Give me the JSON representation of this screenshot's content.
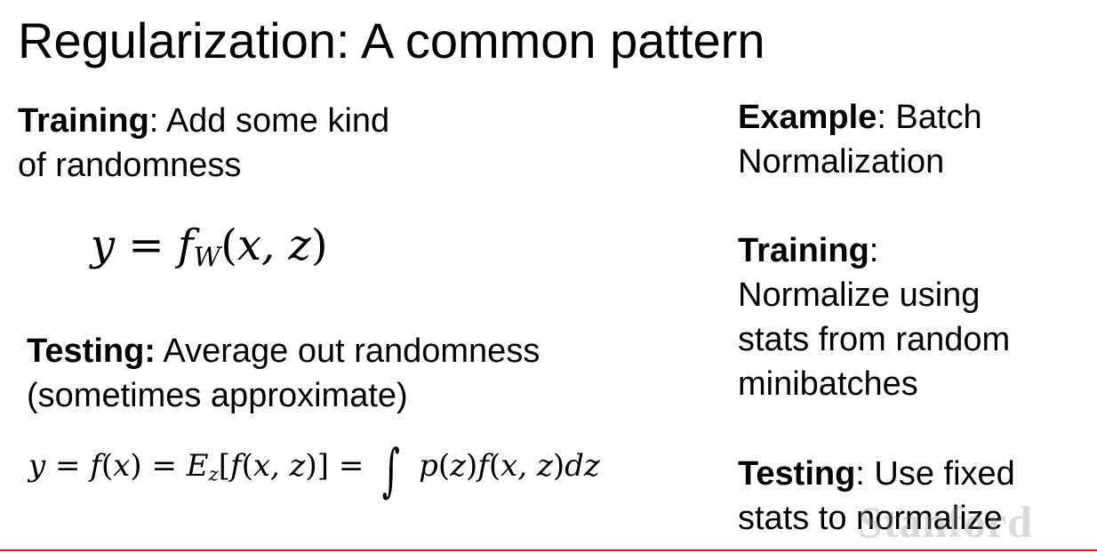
{
  "slide": {
    "title": "Regularization: A common pattern",
    "training": {
      "label": "Training",
      "text_line1": ": Add some kind",
      "text_line2": "of randomness"
    },
    "testing": {
      "label": "Testing:",
      "text_line1": " Average out randomness",
      "text_line2": "(sometimes approximate)"
    },
    "example": {
      "label": "Example",
      "text_line1": ": Batch",
      "text_line2": "Normalization"
    },
    "bn_training": {
      "label": "Training",
      "colon": ":",
      "lines": [
        "Normalize using",
        "stats from random",
        "minibatches"
      ]
    },
    "bn_testing": {
      "label": "Testing",
      "text_line1": ": Use fixed",
      "text_line2": "stats to normalize"
    },
    "watermark": "Stanford",
    "colors": {
      "background": "#ffffff",
      "text": "#000000",
      "accent_line": "#b1282e"
    }
  }
}
